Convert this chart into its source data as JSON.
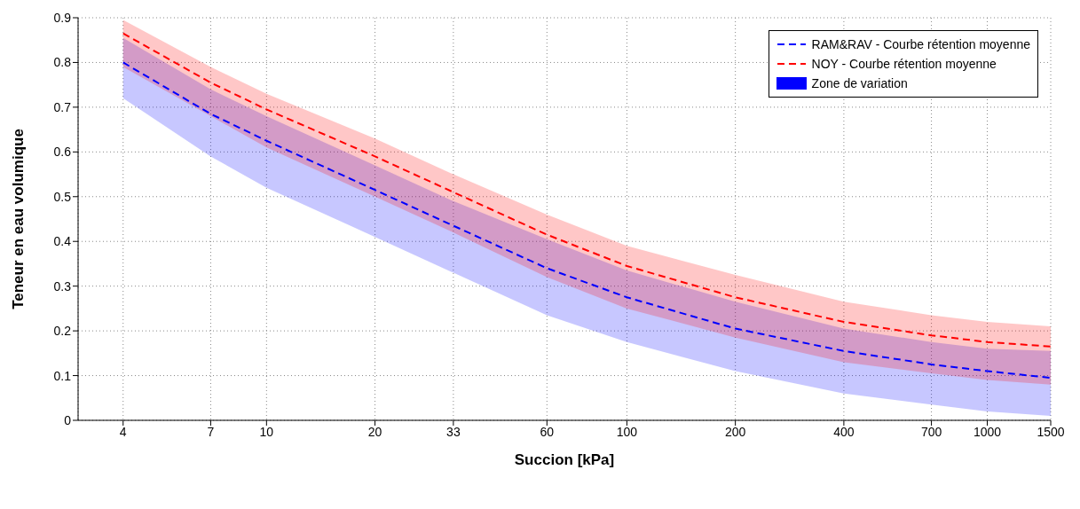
{
  "chart_data": {
    "type": "line",
    "xlabel": "Succion [kPa]",
    "ylabel": "Teneur en eau volumique",
    "log": "x",
    "grid": true,
    "legend": "top right",
    "line_style": "dashed",
    "marker": "none",
    "x": [
      4,
      7,
      10,
      20,
      33,
      60,
      100,
      200,
      400,
      700,
      1000,
      1500
    ],
    "xlim": [
      3,
      1500
    ],
    "xticks": [
      4,
      7,
      10,
      20,
      33,
      60,
      100,
      200,
      400,
      700,
      1000,
      1500
    ],
    "ylim": [
      0,
      0.9
    ],
    "yticks": [
      0,
      0.1,
      0.2,
      0.3,
      0.4,
      0.5,
      0.6,
      0.7,
      0.8,
      0.9
    ],
    "series": [
      {
        "name": "RAM&RAV - Courbe rétention moyenne",
        "color": "#0000ff",
        "values": [
          0.8,
          0.685,
          0.625,
          0.515,
          0.435,
          0.34,
          0.275,
          0.205,
          0.155,
          0.125,
          0.11,
          0.095
        ],
        "lower": [
          0.72,
          0.59,
          0.52,
          0.41,
          0.33,
          0.235,
          0.175,
          0.11,
          0.06,
          0.035,
          0.02,
          0.01
        ],
        "upper": [
          0.855,
          0.74,
          0.68,
          0.57,
          0.49,
          0.405,
          0.335,
          0.265,
          0.205,
          0.175,
          0.16,
          0.155
        ]
      },
      {
        "name": "NOY - Courbe rétention moyenne",
        "color": "#ff0000",
        "values": [
          0.865,
          0.755,
          0.695,
          0.59,
          0.51,
          0.415,
          0.345,
          0.275,
          0.22,
          0.19,
          0.175,
          0.165
        ],
        "lower": [
          0.79,
          0.68,
          0.61,
          0.5,
          0.42,
          0.32,
          0.25,
          0.185,
          0.13,
          0.105,
          0.09,
          0.08
        ],
        "upper": [
          0.895,
          0.79,
          0.73,
          0.63,
          0.55,
          0.46,
          0.39,
          0.325,
          0.265,
          0.235,
          0.22,
          0.21
        ]
      }
    ],
    "annotations": [
      "Zone de variation"
    ]
  }
}
